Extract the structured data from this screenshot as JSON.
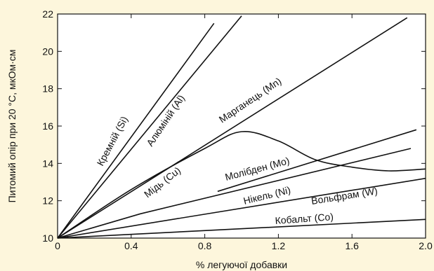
{
  "chart_data": {
    "type": "line",
    "title": "",
    "xlabel": "% легуючої добавки",
    "ylabel": "Питомий опір при 20 °C, мкОм·см",
    "xlim": [
      0,
      2.0
    ],
    "ylim": [
      10,
      22
    ],
    "xticks": [
      0,
      0.4,
      0.8,
      1.2,
      1.6,
      2.0
    ],
    "xtick_labels": [
      "0",
      "0.4",
      "0.8",
      "1.2",
      "1.6",
      "2.0"
    ],
    "yticks": [
      10,
      12,
      14,
      16,
      18,
      20,
      22
    ],
    "ytick_labels": [
      "10",
      "12",
      "14",
      "16",
      "18",
      "20",
      "22"
    ],
    "grid": false,
    "series": [
      {
        "name": "Кремній (Si)",
        "x": [
          0,
          0.85
        ],
        "y": [
          10,
          21.5
        ]
      },
      {
        "name": "Алюміній (Al)",
        "x": [
          0,
          1.0
        ],
        "y": [
          10,
          21.9
        ]
      },
      {
        "name": "Марганець (Mn)",
        "x": [
          0,
          1.9
        ],
        "y": [
          10,
          21.8
        ]
      },
      {
        "name": "Мідь (Cu)",
        "x": [
          0,
          0.4,
          0.8,
          1.0,
          1.2,
          1.4,
          1.6,
          1.8,
          2.0
        ],
        "y": [
          10,
          12.6,
          14.8,
          15.7,
          15.2,
          14.2,
          13.8,
          13.6,
          13.7
        ]
      },
      {
        "name": "Молібден (Mo)",
        "x": [
          0.87,
          1.95
        ],
        "y": [
          12.5,
          15.8
        ]
      },
      {
        "name": "Нікель (Ni)",
        "x": [
          0,
          0.45,
          1.92
        ],
        "y": [
          10,
          11.3,
          14.8
        ]
      },
      {
        "name": "Вольфрам (W)",
        "x": [
          0,
          2.0
        ],
        "y": [
          10,
          13.2
        ]
      },
      {
        "name": "Кобальт (Co)",
        "x": [
          0,
          2.0
        ],
        "y": [
          10,
          11.0
        ]
      }
    ]
  }
}
